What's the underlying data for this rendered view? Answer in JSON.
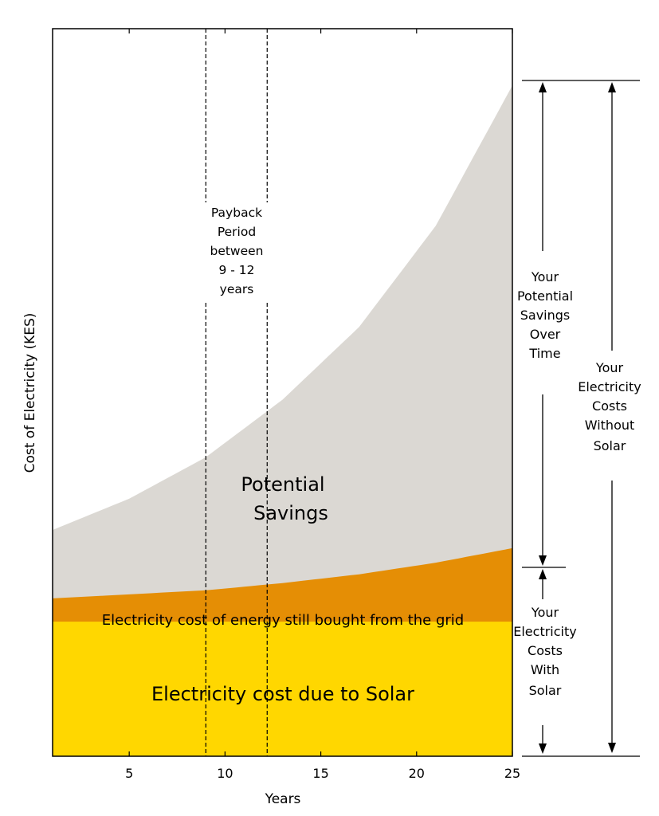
{
  "chart_data": {
    "type": "area",
    "title": "",
    "xlabel": "Years",
    "ylabel": "Cost of Electricity (KES)",
    "xlim": [
      1,
      25
    ],
    "ylim": [
      0,
      100
    ],
    "x_ticks": [
      "5",
      "10",
      "15",
      "20",
      "25"
    ],
    "x_tick_values": [
      5,
      10,
      15,
      20,
      25
    ],
    "grid": false,
    "series": [
      {
        "name": "Electricity cost due to Solar",
        "color": "#FFD700",
        "x": [
          1,
          25
        ],
        "y": [
          18.5,
          18.5
        ]
      },
      {
        "name": "Electricity cost of energy still bought from the grid",
        "color": "#E58E05",
        "x": [
          1,
          9,
          13,
          17,
          21,
          25
        ],
        "y": [
          21.7,
          22.8,
          23.8,
          25.0,
          26.6,
          28.6
        ]
      },
      {
        "name": "Potential Savings",
        "color": "#DBD8D3",
        "x": [
          1,
          5,
          9,
          13,
          17,
          21,
          25
        ],
        "y": [
          31.1,
          35.4,
          41.1,
          49.0,
          59.0,
          72.9,
          92.2
        ]
      }
    ],
    "payback_period": {
      "range": [
        9,
        12.2
      ],
      "label_lines": [
        "Payback",
        "Period",
        "between",
        "9 - 12",
        "years"
      ]
    },
    "annotations": {
      "savings_over_time": [
        "Your",
        "Potential",
        "Savings",
        "Over",
        "Time"
      ],
      "costs_without_solar": [
        "Your",
        "Electricity",
        "Costs",
        "Without",
        "Solar"
      ],
      "costs_with_solar": [
        "Your",
        "Electricity",
        "Costs",
        "With",
        "Solar"
      ],
      "potential_savings_label": [
        "Potential",
        "Savings"
      ],
      "grid_band_label": "Electricity cost of energy still bought from the grid",
      "solar_band_label": "Electricity cost due to Solar"
    }
  }
}
